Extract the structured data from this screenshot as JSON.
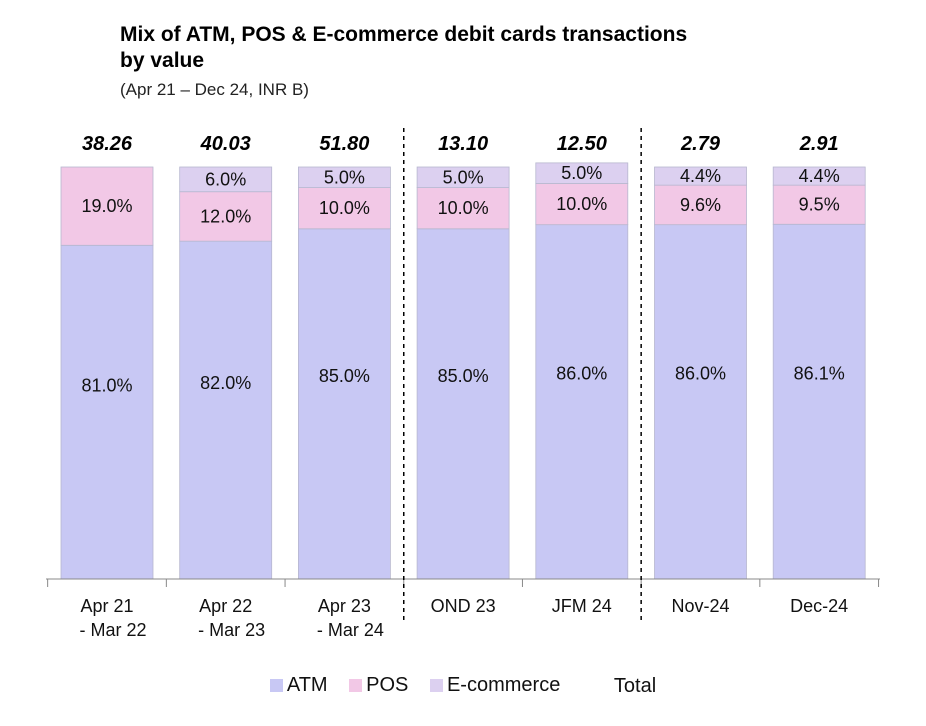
{
  "chart_data": {
    "type": "bar",
    "stacked": true,
    "normalized": true,
    "title_line1": "Mix of ATM, POS & E-commerce debit cards transactions",
    "title_line2": "by value",
    "subtitle": "(Apr 21 – Dec 24, INR B)",
    "categories": [
      [
        "Apr 21",
        "- Mar 22"
      ],
      [
        "Apr 22",
        "- Mar 23"
      ],
      [
        "Apr 23",
        "- Mar 24"
      ],
      [
        "OND 23"
      ],
      [
        "JFM 24"
      ],
      [
        "Nov-24"
      ],
      [
        "Dec-24"
      ]
    ],
    "totals": [
      "38.26",
      "40.03",
      "51.80",
      "13.10",
      "12.50",
      "2.79",
      "2.91"
    ],
    "series": [
      {
        "name": "ATM",
        "color": "#c8c8f4",
        "values": [
          81.0,
          82.0,
          85.0,
          85.0,
          86.0,
          86.0,
          86.1
        ],
        "labels": [
          "81.0%",
          "82.0%",
          "85.0%",
          "85.0%",
          "86.0%",
          "86.0%",
          "86.1%"
        ]
      },
      {
        "name": "POS",
        "color": "#f2c8e6",
        "values": [
          19.0,
          12.0,
          10.0,
          10.0,
          10.0,
          9.6,
          9.5
        ],
        "labels": [
          "19.0%",
          "12.0%",
          "10.0%",
          "10.0%",
          "10.0%",
          "9.6%",
          "9.5%"
        ]
      },
      {
        "name": "E-commerce",
        "color": "#dcd0f0",
        "values": [
          0,
          6.0,
          5.0,
          5.0,
          5.0,
          4.4,
          4.4
        ],
        "labels": [
          "",
          "6.0%",
          "5.0%",
          "5.0%",
          "5.0%",
          "4.4%",
          "4.4%"
        ]
      }
    ],
    "legend": [
      "ATM",
      "POS",
      "E-commerce",
      "Total"
    ],
    "ylim": [
      0,
      100
    ],
    "grid": false,
    "legend_position": "bottom",
    "separators_after": [
      2,
      4
    ]
  }
}
